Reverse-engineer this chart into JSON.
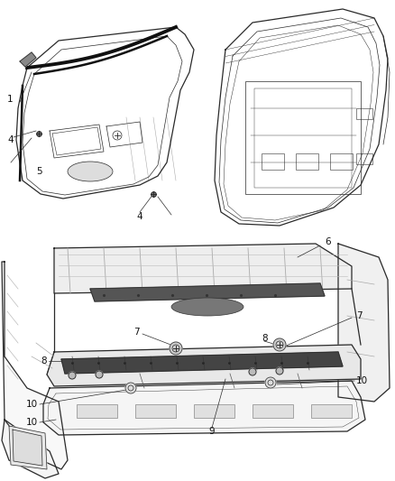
{
  "bg_color": "#ffffff",
  "line_color": "#2a2a2a",
  "label_color": "#111111",
  "figsize": [
    4.38,
    5.33
  ],
  "dpi": 100,
  "lw_thin": 0.5,
  "lw_med": 0.9,
  "lw_thick": 1.8,
  "font_size": 7.5
}
